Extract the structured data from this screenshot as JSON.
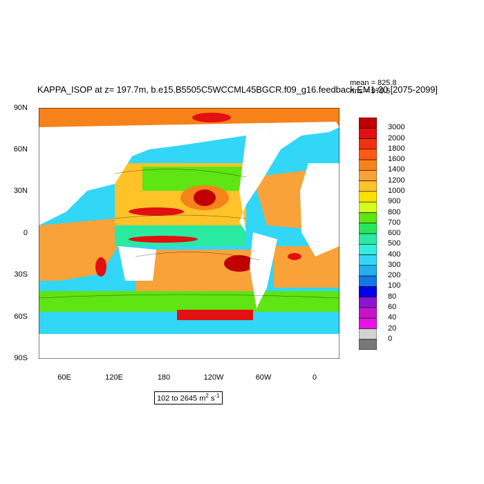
{
  "title": "KAPPA_ISOP at z= 197.7m, b.e15.B5505C5WCCML45BGCR.f09_g16.feedback.EM1-20 [2075-2099]",
  "stats": {
    "mean": "mean = 825.8",
    "rms": "rms = 979.5"
  },
  "lat_labels": [
    "90N",
    "60N",
    "30N",
    "0",
    "30S",
    "60S",
    "90S"
  ],
  "lon_labels": [
    "60E",
    "120E",
    "180",
    "120W",
    "60W",
    "0"
  ],
  "range_text": "102 to 2645",
  "range_unit": "m",
  "range_exp": "2",
  "range_unit2": "s",
  "range_exp2": "-1",
  "colorbar": {
    "labels": [
      "3000",
      "2000",
      "1800",
      "1600",
      "1400",
      "1200",
      "1000",
      "900",
      "800",
      "700",
      "600",
      "500",
      "400",
      "300",
      "200",
      "100",
      "80",
      "60",
      "40",
      "20",
      "0"
    ],
    "colors": [
      "#c00000",
      "#e21010",
      "#f33010",
      "#ff5a14",
      "#f7821a",
      "#f9a23a",
      "#ffc32a",
      "#ffe100",
      "#d5ff1c",
      "#5fe414",
      "#28e65a",
      "#2ae9a0",
      "#34eedc",
      "#32d6f6",
      "#22b0ee",
      "#1676e6",
      "#0000e6",
      "#8c14d6",
      "#c814c8",
      "#e614e6",
      "#d2d2d2",
      "#787878"
    ]
  }
}
